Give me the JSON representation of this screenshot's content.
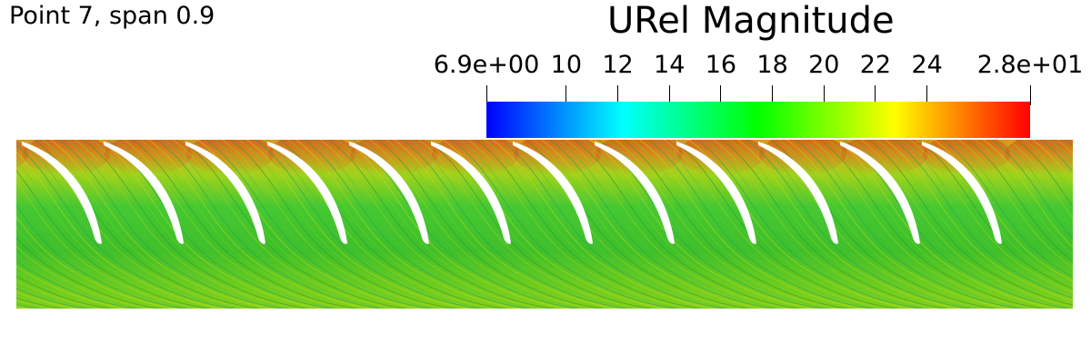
{
  "caption": "Point 7, span 0.9",
  "chart_data": {
    "type": "heatmap",
    "title": "URel Magnitude",
    "colormap": [
      "#0000ff",
      "#00ffff",
      "#00ff00",
      "#ffff00",
      "#ff0000"
    ],
    "range": [
      6.9,
      28
    ],
    "ticks": [
      {
        "value": 6.9,
        "label": "6.9e+00"
      },
      {
        "value": 10,
        "label": "10"
      },
      {
        "value": 12,
        "label": "12"
      },
      {
        "value": 14,
        "label": "14"
      },
      {
        "value": 16,
        "label": "16"
      },
      {
        "value": 18,
        "label": "18"
      },
      {
        "value": 20,
        "label": "20"
      },
      {
        "value": 22,
        "label": "22"
      },
      {
        "value": 24,
        "label": "24"
      },
      {
        "value": 28,
        "label": "2.8e+01"
      }
    ],
    "blade_count": 12
  }
}
